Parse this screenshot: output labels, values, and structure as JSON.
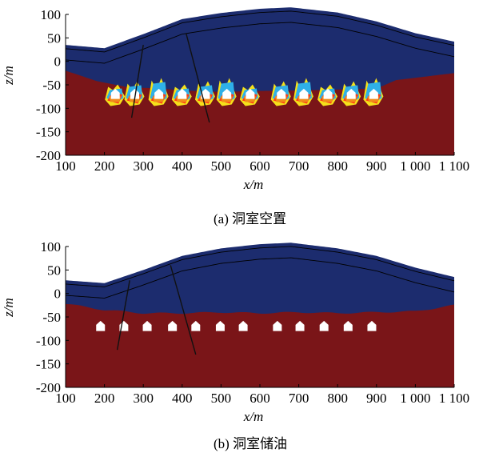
{
  "figure": {
    "panels": [
      {
        "caption": "(a) 洞室空置",
        "xlabel": "x/m",
        "ylabel": "z/m",
        "xticks": [
          "100",
          "200",
          "300",
          "400",
          "500",
          "600",
          "700",
          "800",
          "900",
          "1 000",
          "1 100"
        ],
        "yticks": [
          "100",
          "50",
          "0",
          "-50",
          "-100",
          "-150",
          "-200"
        ],
        "state": "empty"
      },
      {
        "caption": "(b) 洞室储油",
        "xlabel": "x/m",
        "ylabel": "z/m",
        "xticks": [
          "100",
          "200",
          "300",
          "400",
          "500",
          "600",
          "700",
          "800",
          "900",
          "1 000",
          "1 100"
        ],
        "yticks": [
          "100",
          "50",
          "0",
          "-50",
          "-100",
          "-150",
          "-200"
        ],
        "state": "filled"
      }
    ],
    "colors": {
      "unsaturated": "#1c2c6e",
      "saturated": "#7a1518",
      "cavern": "#ffffff",
      "contour_line": "#000000",
      "transition_colors": [
        "#f5e11a",
        "#2fb0e8",
        "#ff3b16",
        "#f08c1c"
      ]
    }
  },
  "chart_data": [
    {
      "type": "heatmap",
      "caption": "(a) 洞室空置",
      "xlabel": "x/m",
      "ylabel": "z/m",
      "xlim": [
        100,
        1100
      ],
      "ylim": [
        -200,
        100
      ],
      "xticks": [
        100,
        200,
        300,
        400,
        500,
        600,
        700,
        800,
        900,
        1000,
        1100
      ],
      "yticks": [
        100,
        50,
        0,
        -50,
        -100,
        -150,
        -200
      ],
      "ground_surface": {
        "x": [
          100,
          200,
          300,
          400,
          500,
          600,
          680,
          800,
          900,
          1000,
          1100
        ],
        "z": [
          35,
          28,
          58,
          90,
          103,
          112,
          115,
          104,
          85,
          60,
          42
        ]
      },
      "water_table": {
        "x": [
          100,
          130,
          180,
          260,
          350,
          400,
          500,
          600,
          700,
          800,
          900,
          950,
          1100
        ],
        "z": [
          -20,
          -28,
          -42,
          -55,
          -58,
          -62,
          -65,
          -63,
          -62,
          -60,
          -58,
          -40,
          -25
        ]
      },
      "cavern_centers_x": [
        228,
        278,
        340,
        400,
        460,
        515,
        575,
        655,
        713,
        775,
        835,
        893
      ]
    },
    {
      "type": "heatmap",
      "caption": "(b) 洞室储油",
      "xlabel": "x/m",
      "ylabel": "z/m",
      "xlim": [
        100,
        1100
      ],
      "ylim": [
        -200,
        100
      ],
      "xticks": [
        100,
        200,
        300,
        400,
        500,
        600,
        700,
        800,
        900,
        1000,
        1100
      ],
      "yticks": [
        100,
        50,
        0,
        -50,
        -100,
        -150,
        -200
      ],
      "ground_surface": {
        "x": [
          100,
          200,
          300,
          400,
          500,
          600,
          680,
          800,
          900,
          1000,
          1100
        ],
        "z": [
          28,
          22,
          50,
          80,
          96,
          105,
          108,
          96,
          80,
          55,
          35
        ]
      },
      "water_table": {
        "x": [
          100,
          200,
          300,
          400,
          500,
          600,
          700,
          800,
          900,
          1000,
          1100
        ],
        "z": [
          -22,
          -35,
          -42,
          -42,
          -40,
          -42,
          -40,
          -42,
          -40,
          -38,
          -25
        ]
      },
      "cavern_centers_x": [
        190,
        250,
        310,
        375,
        435,
        498,
        557,
        645,
        703,
        765,
        827,
        888
      ]
    }
  ]
}
